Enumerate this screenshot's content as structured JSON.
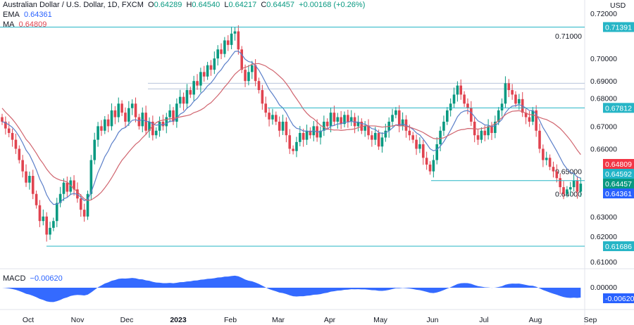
{
  "header": {
    "symbol": "Australian Dollar / U.S. Dollar, 1D, FXCM",
    "open_label": "O",
    "open": "0.64289",
    "high_label": "H",
    "high": "0.64540",
    "low_label": "L",
    "low": "0.64217",
    "close_label": "C",
    "close": "0.64457",
    "change": "+0.00168 (+0.26%)",
    "ema_label": "EMA",
    "ema": "0.64361",
    "ma_label": "MA",
    "ma": "0.64809"
  },
  "chart_data": {
    "type": "candlestick",
    "currency": "USD",
    "ylim": [
      0.605,
      0.7205
    ],
    "y_ticks": [
      "0.72000",
      "0.71000",
      "0.70000",
      "0.69000",
      "0.68000",
      "0.67000",
      "0.66000",
      "0.65000",
      "0.64000",
      "0.63000",
      "0.62000",
      "0.61000"
    ],
    "x_ticks": [
      "Oct",
      "Nov",
      "Dec",
      "2023",
      "Feb",
      "Mar",
      "Apr",
      "May",
      "Jun",
      "Jul",
      "Aug",
      "Sep"
    ],
    "closes": [
      0.672,
      0.669,
      0.667,
      0.664,
      0.66,
      0.655,
      0.65,
      0.645,
      0.648,
      0.64,
      0.635,
      0.628,
      0.63,
      0.622,
      0.625,
      0.628,
      0.636,
      0.64,
      0.645,
      0.641,
      0.646,
      0.642,
      0.638,
      0.633,
      0.63,
      0.64,
      0.655,
      0.664,
      0.67,
      0.668,
      0.673,
      0.67,
      0.677,
      0.674,
      0.68,
      0.676,
      0.672,
      0.678,
      0.68,
      0.674,
      0.67,
      0.676,
      0.668,
      0.672,
      0.666,
      0.668,
      0.672,
      0.67,
      0.674,
      0.677,
      0.672,
      0.68,
      0.683,
      0.68,
      0.686,
      0.684,
      0.69,
      0.688,
      0.694,
      0.692,
      0.697,
      0.695,
      0.7,
      0.704,
      0.702,
      0.708,
      0.706,
      0.711,
      0.712,
      0.704,
      0.695,
      0.69,
      0.694,
      0.697,
      0.69,
      0.686,
      0.68,
      0.676,
      0.673,
      0.675,
      0.672,
      0.668,
      0.672,
      0.666,
      0.66,
      0.659,
      0.663,
      0.667,
      0.664,
      0.668,
      0.666,
      0.67,
      0.665,
      0.668,
      0.672,
      0.67,
      0.676,
      0.672,
      0.674,
      0.671,
      0.675,
      0.672,
      0.674,
      0.67,
      0.672,
      0.668,
      0.67,
      0.666,
      0.664,
      0.667,
      0.661,
      0.665,
      0.668,
      0.672,
      0.675,
      0.677,
      0.67,
      0.673,
      0.668,
      0.666,
      0.664,
      0.66,
      0.662,
      0.656,
      0.653,
      0.65,
      0.655,
      0.662,
      0.668,
      0.672,
      0.677,
      0.68,
      0.684,
      0.688,
      0.684,
      0.68,
      0.678,
      0.672,
      0.666,
      0.664,
      0.668,
      0.666,
      0.67,
      0.667,
      0.672,
      0.677,
      0.68,
      0.689,
      0.686,
      0.684,
      0.68,
      0.682,
      0.676,
      0.674,
      0.672,
      0.677,
      0.668,
      0.66,
      0.655,
      0.656,
      0.652,
      0.65,
      0.647,
      0.643,
      0.64,
      0.642,
      0.643,
      0.646,
      0.641,
      0.64457
    ],
    "levels": [
      {
        "value": "0.71391",
        "color": "#26b5c6"
      },
      {
        "value": "0.67812",
        "color": "#26b5c6"
      },
      {
        "value": "0.61686",
        "color": "#26b5c6"
      },
      {
        "value": "0.64592",
        "color": "#26b5c6"
      }
    ],
    "resistance_band": [
      0.6865,
      0.689
    ],
    "price_tags": [
      {
        "value": "0.64809",
        "color": "#f23645"
      },
      {
        "value": "0.64592",
        "color": "#22b5c8"
      },
      {
        "value": "0.64457",
        "color": "#089981"
      },
      {
        "value": "0.64361",
        "color": "#2962ff"
      }
    ],
    "colors": {
      "up": "#089981",
      "down": "#e0434f",
      "ema": "#5b7fc9",
      "ma": "#d0646e",
      "macd": "#2962ff"
    },
    "macd": {
      "label": "MACD",
      "value": "−0.00620",
      "zero_tick": "0.00000",
      "tag": "-0.00620"
    }
  }
}
